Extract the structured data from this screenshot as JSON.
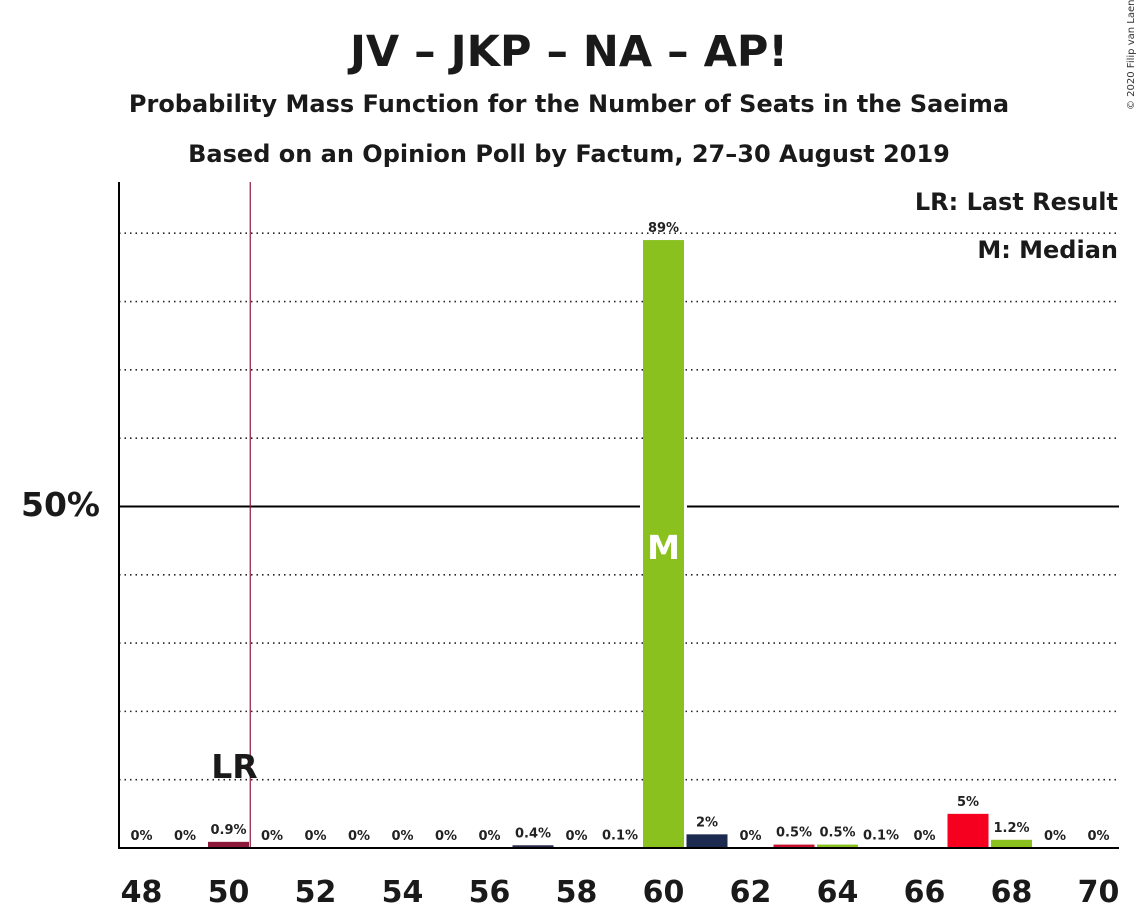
{
  "chart_data": {
    "type": "bar",
    "title": "JV – JKP – NA – AP!",
    "subtitle": "Probability Mass Function for the Number of Seats in the Saeima",
    "subtitle2": "Based on an Opinion Poll by Factum, 27–30 August 2019",
    "copyright": "© 2020 Filip van Laenen",
    "legend": [
      "LR: Last Result",
      "M: Median"
    ],
    "legend_position": "top-right",
    "y_major_label": "50%",
    "y_major_value": 50,
    "ylim": [
      0,
      97.5
    ],
    "grid": "dotted every 10%",
    "x": [
      48,
      49,
      50,
      51,
      52,
      53,
      54,
      55,
      56,
      57,
      58,
      59,
      60,
      61,
      62,
      63,
      64,
      65,
      66,
      67,
      68,
      69,
      70
    ],
    "values": [
      0,
      0,
      0.9,
      0,
      0,
      0,
      0,
      0,
      0,
      0.4,
      0,
      0.1,
      89,
      2,
      0,
      0.5,
      0.5,
      0.1,
      0,
      5,
      1.2,
      0,
      0
    ],
    "labels": [
      "0%",
      "0%",
      "0.9%",
      "0%",
      "0%",
      "0%",
      "0%",
      "0%",
      "0%",
      "0.4%",
      "0%",
      "0.1%",
      "89%",
      "2%",
      "0%",
      "0.5%",
      "0.5%",
      "0.1%",
      "0%",
      "5%",
      "1.2%",
      "0%",
      "0%"
    ],
    "colors": [
      "#4a2a4a",
      "#4a2a4a",
      "#8b1a3a",
      "#4a2a4a",
      "#4a2a4a",
      "#4a2a4a",
      "#4a2a4a",
      "#4a2a4a",
      "#4a2a4a",
      "#2a2a4a",
      "#4a2a4a",
      "#4a2a4a",
      "#8ac11e",
      "#1c2a50",
      "#4a2a4a",
      "#c8102e",
      "#8ac11e",
      "#4a2a4a",
      "#4a2a4a",
      "#f5001e",
      "#8ac11e",
      "#4a2a4a",
      "#4a2a4a"
    ],
    "x_ticks": [
      48,
      50,
      52,
      54,
      56,
      58,
      60,
      62,
      64,
      66,
      68,
      70
    ],
    "last_result": 50,
    "last_result_label": "LR",
    "median": 60,
    "median_label": "M"
  }
}
